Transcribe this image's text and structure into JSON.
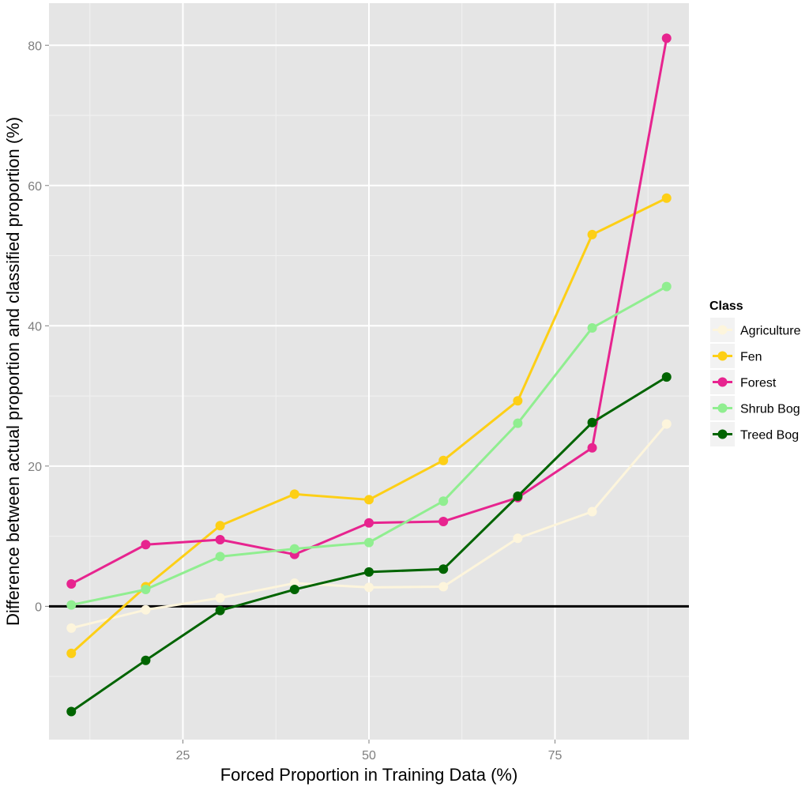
{
  "chart_data": {
    "type": "line",
    "title": "",
    "xlabel": "Forced Proportion in Training Data (%)",
    "ylabel": "Difference between actual proportion and classified proportion (%)",
    "xlim": [
      7,
      93
    ],
    "ylim": [
      -19,
      86
    ],
    "xticks": [
      25,
      50,
      75
    ],
    "yticks": [
      0,
      20,
      40,
      60,
      80
    ],
    "xtick_labels": [
      "25",
      "50",
      "75"
    ],
    "ytick_labels": [
      "0",
      "20",
      "40",
      "60",
      "80"
    ],
    "x": [
      10,
      20,
      30,
      40,
      50,
      60,
      70,
      80,
      90
    ],
    "reference_line": 0,
    "legend_title": "Class",
    "legend_position": "right",
    "series": [
      {
        "name": "Agriculture",
        "color": "#fdf5dc",
        "values": [
          -3.1,
          -0.5,
          1.2,
          3.3,
          2.7,
          2.8,
          9.7,
          13.5,
          26.0
        ]
      },
      {
        "name": "Fen",
        "color": "#fdcf16",
        "values": [
          -6.7,
          2.8,
          11.5,
          16.0,
          15.2,
          20.8,
          29.3,
          53.0,
          58.2
        ]
      },
      {
        "name": "Forest",
        "color": "#e7248f",
        "values": [
          3.2,
          8.8,
          9.5,
          7.4,
          11.9,
          12.1,
          15.5,
          22.6,
          81.0
        ]
      },
      {
        "name": "Shrub Bog",
        "color": "#90ee90",
        "values": [
          0.2,
          2.4,
          7.1,
          8.2,
          9.1,
          15.0,
          26.1,
          39.7,
          45.6
        ]
      },
      {
        "name": "Treed Bog",
        "color": "#006400",
        "values": [
          -15.0,
          -7.7,
          -0.6,
          2.4,
          4.9,
          5.3,
          15.7,
          26.2,
          32.7
        ]
      }
    ]
  }
}
